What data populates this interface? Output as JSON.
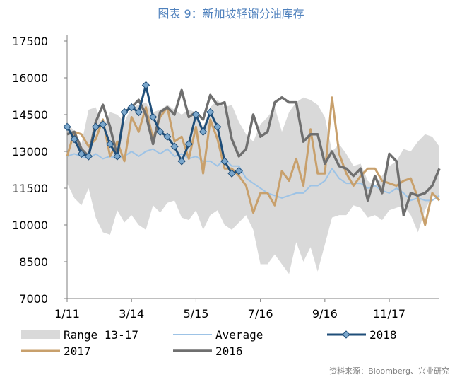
{
  "title": "图表 9：新加坡轻馏分油库存",
  "source": "资料来源：Bloomberg、兴业研究",
  "chart_data": {
    "type": "line",
    "ylim": [
      7000,
      17500
    ],
    "y_ticks": [
      "17500",
      "16000",
      "14500",
      "13000",
      "11500",
      "10000",
      "8500",
      "7000"
    ],
    "x_ticks": [
      "1/11",
      "3/14",
      "5/15",
      "7/16",
      "9/16",
      "11/17"
    ],
    "weeks": 53,
    "legend": {
      "position": "bottom"
    },
    "range_band": {
      "name": "Range 13-17",
      "color": "#d9d9d9",
      "max": [
        14200,
        13800,
        13300,
        14700,
        14800,
        14000,
        14600,
        14500,
        14200,
        14800,
        14900,
        15000,
        14600,
        14700,
        14900,
        14700,
        14500,
        14700,
        14600,
        14000,
        14800,
        15100,
        14800,
        14900,
        14200,
        13700,
        13400,
        14100,
        14400,
        14800,
        13800,
        14600,
        15000,
        15200,
        15100,
        14900,
        14400,
        13000,
        13300,
        12900,
        12400,
        12500,
        11800,
        11600,
        12000,
        12400,
        12600,
        13100,
        13000,
        13400,
        13700,
        13600,
        13200
      ],
      "min": [
        11700,
        11100,
        10800,
        11500,
        10300,
        9700,
        9600,
        10600,
        10100,
        10400,
        10000,
        9800,
        10800,
        10500,
        10900,
        11000,
        10300,
        10200,
        10600,
        9800,
        10400,
        10600,
        10000,
        9800,
        10100,
        10400,
        9800,
        8400,
        8400,
        8800,
        8400,
        8000,
        9300,
        8500,
        9100,
        8100,
        9200,
        10300,
        10400,
        10400,
        10800,
        10700,
        10300,
        10400,
        10200,
        10600,
        10700,
        10800,
        10400,
        9700,
        10600,
        11200,
        11000
      ]
    },
    "series": [
      {
        "name": "Average",
        "color": "#9dc3e6",
        "values": [
          12800,
          12900,
          12800,
          12700,
          12900,
          12700,
          12800,
          12700,
          12800,
          13000,
          12800,
          13000,
          13100,
          12900,
          13100,
          12800,
          12900,
          12700,
          12800,
          12600,
          12600,
          12400,
          12700,
          12400,
          12400,
          11900,
          11700,
          11500,
          11300,
          11200,
          11100,
          11200,
          11300,
          11300,
          11600,
          11600,
          11800,
          12300,
          11900,
          11700,
          11700,
          11700,
          11500,
          11600,
          11400,
          11300,
          11500,
          11300,
          11000,
          11100,
          11000,
          11000,
          11200
        ]
      },
      {
        "name": "2017",
        "color": "#c8a06c",
        "values": [
          12800,
          13800,
          13700,
          13200,
          13500,
          14300,
          12800,
          13400,
          12600,
          14400,
          13800,
          14800,
          13500,
          14400,
          14800,
          13400,
          13600,
          12700,
          14000,
          12100,
          14300,
          13500,
          12300,
          12300,
          12000,
          11600,
          10500,
          11300,
          11300,
          10800,
          12200,
          11800,
          12700,
          11600,
          13900,
          12100,
          12100,
          15200,
          12900,
          12100,
          11600,
          12000,
          12300,
          12300,
          11800,
          11700,
          11600,
          11800,
          11900,
          11100,
          10000,
          11300,
          11000
        ]
      },
      {
        "name": "2016",
        "color": "#6f6f6f",
        "values": [
          13700,
          13800,
          13100,
          12800,
          14200,
          14900,
          14000,
          12800,
          14600,
          14800,
          15100,
          14500,
          13300,
          14600,
          14800,
          14500,
          15500,
          14400,
          14600,
          14300,
          15300,
          14900,
          15000,
          13500,
          12800,
          13100,
          14500,
          13600,
          13800,
          15000,
          15200,
          15000,
          15000,
          13400,
          13700,
          13700,
          12500,
          13000,
          12400,
          12300,
          12000,
          12300,
          11000,
          12000,
          11300,
          12900,
          12600,
          10400,
          11300,
          11200,
          11300,
          11600,
          12300
        ]
      },
      {
        "name": "2018",
        "color": "#1f4e79",
        "marker": "diamond",
        "values": [
          14000,
          13500,
          12900,
          12800,
          14000,
          14100,
          13300,
          12800,
          14600,
          14800,
          14600,
          15700,
          14400,
          13800,
          13600,
          13200,
          12600,
          13300,
          14500,
          13800,
          14600,
          14000,
          12600,
          12100,
          12200
        ]
      }
    ]
  }
}
